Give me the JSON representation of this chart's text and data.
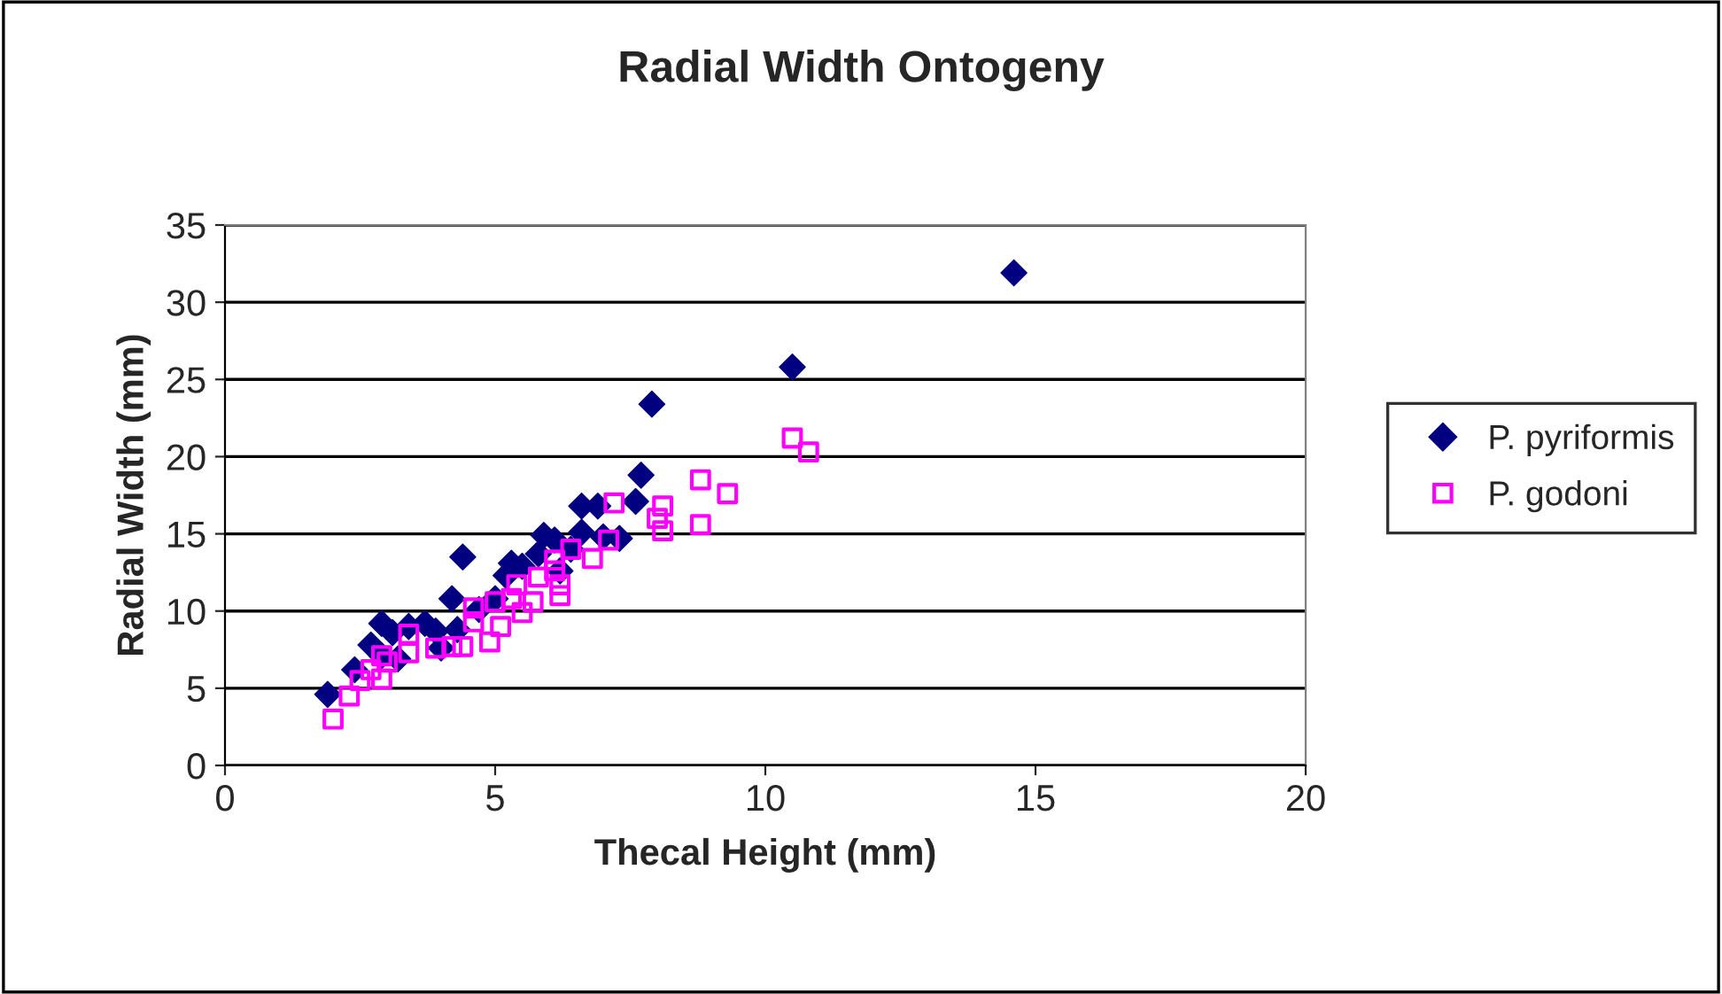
{
  "chart_data": {
    "type": "scatter",
    "title": "Radial Width Ontogeny",
    "xlabel": "Thecal Height (mm)",
    "ylabel": "Radial Width (mm)",
    "xlim": [
      0,
      20
    ],
    "xticks": [
      0,
      5,
      10,
      15,
      20
    ],
    "ylim": [
      0,
      35
    ],
    "yticks": [
      0,
      5,
      10,
      15,
      20,
      25,
      30,
      35
    ],
    "grid": "y",
    "legend": "right",
    "series": [
      {
        "name": "P. pyriformis",
        "color": "#000080",
        "marker": "diamond",
        "x": [
          1.9,
          2.4,
          2.7,
          2.9,
          3.1,
          2.9,
          3.2,
          3.4,
          3.7,
          3.9,
          4.0,
          4.2,
          4.4,
          4.3,
          4.7,
          5.0,
          5.2,
          5.3,
          5.5,
          5.8,
          5.9,
          6.1,
          6.2,
          6.4,
          6.6,
          6.6,
          6.9,
          7.0,
          7.3,
          7.6,
          7.7,
          7.9,
          10.5,
          14.6
        ],
        "values": [
          4.6,
          6.2,
          7.8,
          9.2,
          8.6,
          7.1,
          6.9,
          9.0,
          9.2,
          8.7,
          7.6,
          10.8,
          13.5,
          8.8,
          10.1,
          10.8,
          12.3,
          13.1,
          12.9,
          13.7,
          14.9,
          14.6,
          12.6,
          14.0,
          16.8,
          15.1,
          16.8,
          14.8,
          14.7,
          17.1,
          18.8,
          23.4,
          25.8,
          31.9
        ]
      },
      {
        "name": "P. godoni",
        "color": "#ff00ff",
        "marker": "square",
        "x": [
          2.0,
          2.3,
          2.5,
          2.7,
          2.9,
          2.9,
          3.0,
          3.4,
          3.4,
          3.9,
          4.2,
          4.4,
          4.6,
          4.6,
          4.9,
          5.1,
          5.0,
          5.3,
          5.4,
          5.5,
          5.7,
          5.8,
          6.1,
          6.1,
          6.2,
          6.2,
          6.4,
          6.8,
          7.1,
          7.2,
          8.0,
          8.1,
          8.1,
          8.8,
          8.8,
          9.3,
          10.5,
          10.8
        ],
        "values": [
          3.0,
          4.5,
          5.5,
          6.2,
          7.1,
          5.6,
          6.7,
          8.5,
          7.3,
          7.6,
          7.7,
          7.7,
          9.3,
          10.2,
          8.0,
          9.0,
          10.6,
          10.8,
          11.7,
          9.9,
          10.6,
          12.2,
          12.6,
          13.3,
          11.0,
          11.7,
          14.0,
          13.4,
          14.6,
          17.0,
          16.0,
          15.2,
          16.8,
          18.5,
          15.6,
          17.6,
          21.2,
          20.3
        ]
      }
    ]
  }
}
